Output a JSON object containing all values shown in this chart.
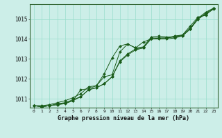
{
  "title": "Graphe pression niveau de la mer (hPa)",
  "bg_color": "#cceee8",
  "plot_bg_color": "#cceee8",
  "grid_color": "#99ddcc",
  "line_color": "#1a5c1a",
  "marker_color": "#1a5c1a",
  "border_color": "#336633",
  "xlim": [
    -0.5,
    23.5
  ],
  "ylim": [
    1010.55,
    1015.75
  ],
  "yticks": [
    1011,
    1012,
    1013,
    1014,
    1015
  ],
  "xticks": [
    0,
    1,
    2,
    3,
    4,
    5,
    6,
    7,
    8,
    9,
    10,
    11,
    12,
    13,
    14,
    15,
    16,
    17,
    18,
    19,
    20,
    21,
    22,
    23
  ],
  "series1": [
    1010.65,
    1010.65,
    1010.7,
    1010.8,
    1010.9,
    1011.05,
    1011.25,
    1011.6,
    1011.65,
    1012.1,
    1012.2,
    1013.35,
    1013.75,
    1013.55,
    1013.6,
    1014.1,
    1014.15,
    1014.1,
    1014.1,
    1014.15,
    1014.5,
    1015.0,
    1015.3,
    1015.55
  ],
  "series2": [
    1010.65,
    1010.6,
    1010.65,
    1010.75,
    1010.8,
    1010.95,
    1011.1,
    1011.45,
    1011.55,
    1011.75,
    1012.1,
    1012.9,
    1013.25,
    1013.5,
    1013.55,
    1014.05,
    1014.05,
    1014.05,
    1014.1,
    1014.2,
    1014.55,
    1015.05,
    1015.35,
    1015.55
  ],
  "series3": [
    1010.65,
    1010.6,
    1010.65,
    1010.7,
    1010.78,
    1010.9,
    1011.1,
    1011.45,
    1011.55,
    1011.75,
    1012.1,
    1012.85,
    1013.2,
    1013.45,
    1013.55,
    1014.0,
    1014.0,
    1014.0,
    1014.05,
    1014.15,
    1014.5,
    1015.0,
    1015.25,
    1015.5
  ],
  "series4": [
    1010.65,
    1010.6,
    1010.65,
    1010.7,
    1010.75,
    1010.9,
    1011.45,
    1011.5,
    1011.65,
    1012.25,
    1013.05,
    1013.65,
    1013.75,
    1013.55,
    1013.85,
    1014.0,
    1014.05,
    1014.05,
    1014.15,
    1014.2,
    1014.65,
    1015.1,
    1015.2,
    1015.55
  ]
}
